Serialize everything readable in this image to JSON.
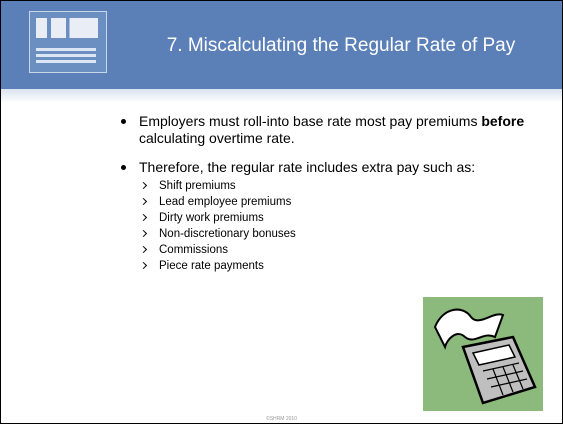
{
  "header": {
    "title": "7. Miscalculating the Regular Rate of Pay"
  },
  "bullets": [
    {
      "parts": [
        "Employers must roll-into base rate most pay premiums ",
        "before",
        " calculating overtime rate."
      ]
    },
    {
      "text": "Therefore, the regular rate includes extra pay such as:",
      "items": [
        "Shift premiums",
        "Lead employee premiums",
        "Dirty work premiums",
        "Non-discretionary bonuses",
        "Commissions",
        "Piece rate payments"
      ]
    }
  ],
  "footer": "©SHRM 2010"
}
